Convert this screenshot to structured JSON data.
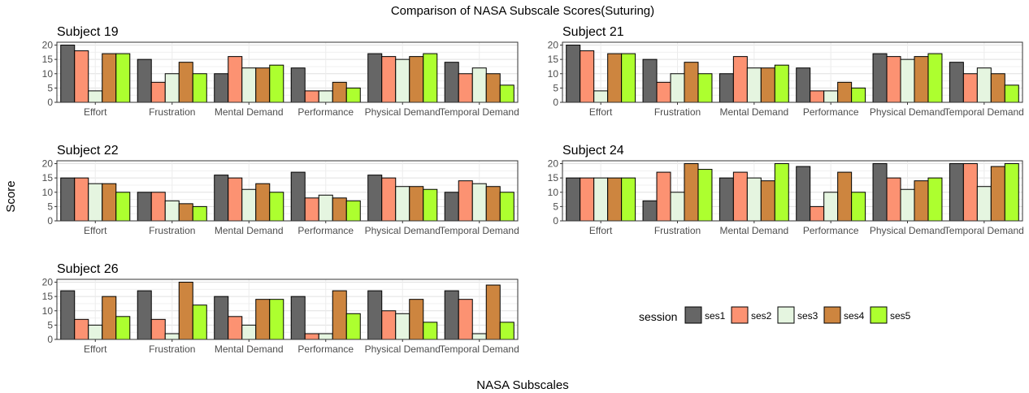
{
  "chart_data": {
    "type": "bar",
    "title": "Comparison of NASA Subscale Scores(Suturing)",
    "xlabel": "NASA Subscales",
    "ylabel": "Score",
    "ylim": [
      0,
      21
    ],
    "yticks": [
      0,
      5,
      10,
      15,
      20
    ],
    "grid": true,
    "legend": {
      "title": "session",
      "placement": "bottom-right",
      "entries": [
        {
          "name": "ses1",
          "color": "#666666"
        },
        {
          "name": "ses2",
          "color": "#FC9272"
        },
        {
          "name": "ses3",
          "color": "#E5F5E0"
        },
        {
          "name": "ses4",
          "color": "#CD853F"
        },
        {
          "name": "ses5",
          "color": "#ADFF2F"
        }
      ]
    },
    "categories": [
      "Effort",
      "Frustration",
      "Mental Demand",
      "Performance",
      "Physical Demand",
      "Temporal Demand"
    ],
    "panels": [
      {
        "title": "Subject 19",
        "series": [
          {
            "name": "ses1",
            "values": [
              20,
              15,
              10,
              12,
              17,
              14
            ]
          },
          {
            "name": "ses2",
            "values": [
              18,
              7,
              16,
              4,
              16,
              10
            ]
          },
          {
            "name": "ses3",
            "values": [
              4,
              10,
              12,
              4,
              15,
              12
            ]
          },
          {
            "name": "ses4",
            "values": [
              17,
              14,
              12,
              7,
              16,
              10
            ]
          },
          {
            "name": "ses5",
            "values": [
              17,
              10,
              13,
              5,
              17,
              6
            ]
          }
        ]
      },
      {
        "title": "Subject 21",
        "series": [
          {
            "name": "ses1",
            "values": [
              20,
              15,
              10,
              12,
              17,
              14
            ]
          },
          {
            "name": "ses2",
            "values": [
              18,
              7,
              16,
              4,
              16,
              10
            ]
          },
          {
            "name": "ses3",
            "values": [
              4,
              10,
              12,
              4,
              15,
              12
            ]
          },
          {
            "name": "ses4",
            "values": [
              17,
              14,
              12,
              7,
              16,
              10
            ]
          },
          {
            "name": "ses5",
            "values": [
              17,
              10,
              13,
              5,
              17,
              6
            ]
          }
        ]
      },
      {
        "title": "Subject 22",
        "series": [
          {
            "name": "ses1",
            "values": [
              15,
              10,
              16,
              17,
              16,
              10
            ]
          },
          {
            "name": "ses2",
            "values": [
              15,
              10,
              15,
              8,
              15,
              14
            ]
          },
          {
            "name": "ses3",
            "values": [
              13,
              7,
              11,
              9,
              12,
              13
            ]
          },
          {
            "name": "ses4",
            "values": [
              13,
              6,
              13,
              8,
              12,
              12
            ]
          },
          {
            "name": "ses5",
            "values": [
              10,
              5,
              10,
              7,
              11,
              10
            ]
          }
        ]
      },
      {
        "title": "Subject 24",
        "series": [
          {
            "name": "ses1",
            "values": [
              15,
              7,
              15,
              19,
              20,
              20
            ]
          },
          {
            "name": "ses2",
            "values": [
              15,
              17,
              17,
              5,
              15,
              20
            ]
          },
          {
            "name": "ses3",
            "values": [
              15,
              10,
              15,
              10,
              11,
              12
            ]
          },
          {
            "name": "ses4",
            "values": [
              15,
              20,
              14,
              17,
              14,
              19
            ]
          },
          {
            "name": "ses5",
            "values": [
              15,
              18,
              20,
              10,
              15,
              20
            ]
          }
        ]
      },
      {
        "title": "Subject 26",
        "series": [
          {
            "name": "ses1",
            "values": [
              17,
              17,
              15,
              15,
              17,
              17
            ]
          },
          {
            "name": "ses2",
            "values": [
              7,
              7,
              8,
              2,
              10,
              14
            ]
          },
          {
            "name": "ses3",
            "values": [
              5,
              2,
              5,
              2,
              9,
              2
            ]
          },
          {
            "name": "ses4",
            "values": [
              15,
              20,
              14,
              17,
              14,
              19
            ]
          },
          {
            "name": "ses5",
            "values": [
              8,
              12,
              14,
              9,
              6,
              6
            ]
          }
        ]
      }
    ]
  }
}
